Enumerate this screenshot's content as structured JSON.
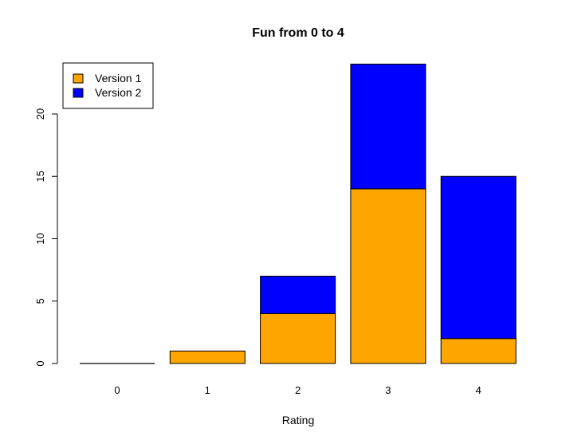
{
  "chart_data": {
    "type": "bar",
    "stacked": true,
    "title": "Fun from 0 to 4",
    "xlabel": "Rating",
    "ylabel": "",
    "categories": [
      "0",
      "1",
      "2",
      "3",
      "4"
    ],
    "series": [
      {
        "name": "Version 1",
        "values": [
          0,
          1,
          4,
          14,
          2
        ],
        "color": "#FFA500"
      },
      {
        "name": "Version 2",
        "values": [
          0,
          0,
          3,
          10,
          13
        ],
        "color": "#0000FF"
      }
    ],
    "ylim": [
      0,
      24
    ],
    "yticks": [
      0,
      5,
      10,
      15,
      20
    ],
    "grid": false,
    "legend_position": "top-left"
  }
}
